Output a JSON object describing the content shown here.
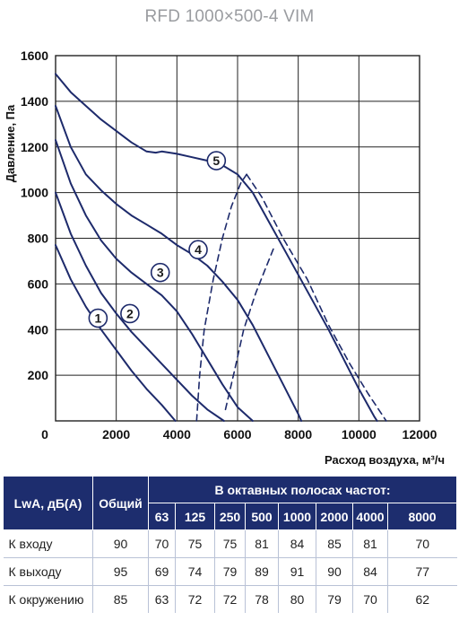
{
  "chart_data": {
    "type": "line",
    "title": "RFD 1000×500-4 VIM",
    "xlabel": "Расход воздуха, м³/ч",
    "ylabel": "Давление, Па",
    "xlim": [
      0,
      12000
    ],
    "ylim": [
      0,
      1600
    ],
    "x_ticks": [
      "0",
      "2000",
      "4000",
      "6000",
      "8000",
      "10000",
      "12000"
    ],
    "y_ticks": [
      "200",
      "400",
      "600",
      "800",
      "1000",
      "1200",
      "1400",
      "1600"
    ],
    "grid": true,
    "series": [
      {
        "name": "1",
        "style": "solid",
        "points": [
          [
            0,
            770
          ],
          [
            500,
            620
          ],
          [
            1000,
            500
          ],
          [
            1500,
            400
          ],
          [
            2000,
            310
          ],
          [
            2500,
            220
          ],
          [
            3000,
            140
          ],
          [
            3500,
            70
          ],
          [
            3950,
            0
          ]
        ]
      },
      {
        "name": "2",
        "style": "solid",
        "points": [
          [
            0,
            1000
          ],
          [
            500,
            820
          ],
          [
            1000,
            680
          ],
          [
            1500,
            560
          ],
          [
            2000,
            470
          ],
          [
            2500,
            390
          ],
          [
            3000,
            320
          ],
          [
            3500,
            250
          ],
          [
            4000,
            180
          ],
          [
            4500,
            110
          ],
          [
            5000,
            50
          ],
          [
            5550,
            0
          ]
        ]
      },
      {
        "name": "3",
        "style": "solid",
        "points": [
          [
            0,
            1230
          ],
          [
            500,
            1040
          ],
          [
            1000,
            900
          ],
          [
            1500,
            790
          ],
          [
            2000,
            710
          ],
          [
            2500,
            650
          ],
          [
            3000,
            600
          ],
          [
            3500,
            550
          ],
          [
            4000,
            480
          ],
          [
            4500,
            380
          ],
          [
            5000,
            270
          ],
          [
            5500,
            160
          ],
          [
            6000,
            60
          ],
          [
            6500,
            0
          ]
        ]
      },
      {
        "name": "4",
        "style": "solid",
        "points": [
          [
            0,
            1380
          ],
          [
            500,
            1200
          ],
          [
            1000,
            1080
          ],
          [
            1500,
            1010
          ],
          [
            2000,
            950
          ],
          [
            2500,
            900
          ],
          [
            3000,
            860
          ],
          [
            3500,
            820
          ],
          [
            4000,
            770
          ],
          [
            4500,
            730
          ],
          [
            5000,
            680
          ],
          [
            5500,
            610
          ],
          [
            6000,
            530
          ],
          [
            6500,
            420
          ],
          [
            7000,
            290
          ],
          [
            7500,
            160
          ],
          [
            8000,
            30
          ],
          [
            8100,
            0
          ]
        ]
      },
      {
        "name": "5",
        "style": "solid",
        "points": [
          [
            0,
            1520
          ],
          [
            500,
            1440
          ],
          [
            1000,
            1380
          ],
          [
            1500,
            1320
          ],
          [
            2000,
            1270
          ],
          [
            2500,
            1220
          ],
          [
            3000,
            1180
          ],
          [
            3300,
            1175
          ],
          [
            3500,
            1180
          ],
          [
            4000,
            1170
          ],
          [
            4500,
            1155
          ],
          [
            5000,
            1140
          ],
          [
            5500,
            1120
          ],
          [
            6000,
            1080
          ],
          [
            6500,
            1000
          ],
          [
            7000,
            880
          ],
          [
            7500,
            760
          ],
          [
            8000,
            640
          ],
          [
            8500,
            520
          ],
          [
            9000,
            400
          ],
          [
            9500,
            270
          ],
          [
            10000,
            140
          ],
          [
            10500,
            20
          ],
          [
            10600,
            0
          ]
        ]
      },
      {
        "name": "limit-left",
        "style": "dashed",
        "points": [
          [
            4650,
            0
          ],
          [
            4750,
            200
          ],
          [
            4900,
            400
          ],
          [
            5200,
            620
          ],
          [
            5500,
            800
          ],
          [
            5800,
            940
          ],
          [
            6100,
            1040
          ],
          [
            6300,
            1080
          ]
        ]
      },
      {
        "name": "limit-mid",
        "style": "dashed",
        "points": [
          [
            5600,
            50
          ],
          [
            5900,
            220
          ],
          [
            6200,
            400
          ],
          [
            6600,
            560
          ],
          [
            6900,
            660
          ],
          [
            7200,
            760
          ]
        ]
      },
      {
        "name": "limit-right",
        "style": "dashed",
        "points": [
          [
            6300,
            1080
          ],
          [
            6800,
            980
          ],
          [
            7500,
            800
          ],
          [
            8300,
            620
          ],
          [
            9000,
            420
          ],
          [
            9700,
            250
          ],
          [
            10300,
            120
          ],
          [
            10900,
            0
          ]
        ]
      }
    ],
    "markers": [
      {
        "label": "1",
        "x": 1400,
        "y": 450
      },
      {
        "label": "2",
        "x": 2450,
        "y": 470
      },
      {
        "label": "3",
        "x": 3450,
        "y": 650
      },
      {
        "label": "4",
        "x": 4700,
        "y": 750
      },
      {
        "label": "5",
        "x": 5300,
        "y": 1140
      }
    ],
    "line_color": "#1d2a6b"
  },
  "table": {
    "head_row1": [
      "LwA, дБ(A)",
      "Общий",
      "В октавных полосах частот:"
    ],
    "bands": [
      "63",
      "125",
      "250",
      "500",
      "1000",
      "2000",
      "4000",
      "8000"
    ],
    "rows": [
      {
        "name": "К входу",
        "total": "90",
        "values": [
          "70",
          "75",
          "75",
          "81",
          "84",
          "85",
          "81",
          "70"
        ]
      },
      {
        "name": "К выходу",
        "total": "95",
        "values": [
          "69",
          "74",
          "79",
          "89",
          "91",
          "90",
          "84",
          "77"
        ]
      },
      {
        "name": "К окружению",
        "total": "85",
        "values": [
          "63",
          "72",
          "72",
          "78",
          "80",
          "79",
          "70",
          "62"
        ]
      }
    ],
    "header_color": "#1d2d6e"
  }
}
